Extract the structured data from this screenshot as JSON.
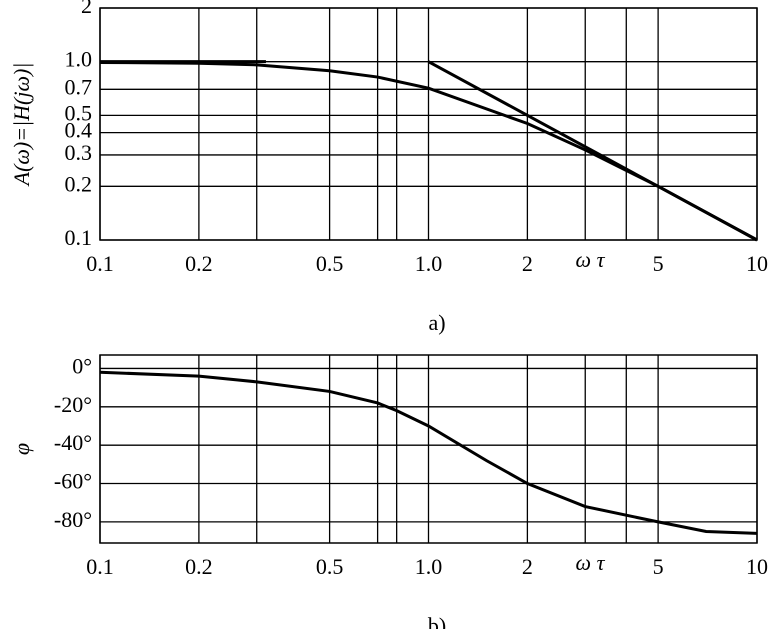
{
  "chart_data": [
    {
      "type": "line",
      "xscale": "log",
      "yscale": "log",
      "caption": "a)",
      "y_label": "A(ω)=|H(jω)|",
      "x_label": "ω τ",
      "xlim": [
        0.1,
        10
      ],
      "ylim": [
        0.1,
        2
      ],
      "xticks": [
        0.1,
        0.2,
        0.5,
        {
          "value": 1,
          "label": "1.0"
        },
        2,
        5,
        10
      ],
      "xgrid": [
        0.1,
        0.2,
        0.3,
        0.5,
        0.7,
        0.8,
        1,
        2,
        3,
        4,
        5,
        10
      ],
      "yticks": [
        2,
        {
          "value": 1,
          "label": "1.0"
        },
        0.7,
        0.5,
        0.4,
        0.3,
        0.2,
        0.1
      ],
      "grid": true,
      "series": [
        {
          "color": "#000000",
          "x": [
            0.1,
            0.2,
            0.3,
            0.5,
            0.7,
            1,
            2,
            3,
            5,
            10
          ],
          "values": [
            0.99,
            0.98,
            0.96,
            0.89,
            0.82,
            0.71,
            0.45,
            0.32,
            0.2,
            0.1
          ]
        },
        {
          "color": "#000000",
          "x": [
            0.1,
            0.32,
            1,
            1,
            10
          ],
          "values": [
            1,
            1,
            null,
            1,
            0.1
          ]
        }
      ]
    },
    {
      "type": "line",
      "xscale": "log",
      "yscale": "linear",
      "caption": "b)",
      "y_label": "φ",
      "x_label": "ω τ",
      "xlim": [
        0.1,
        10
      ],
      "ylim": [
        -91,
        7
      ],
      "xticks": [
        0.1,
        0.2,
        0.5,
        {
          "value": 1,
          "label": "1.0"
        },
        2,
        5,
        10
      ],
      "xgrid": [
        0.1,
        0.2,
        0.3,
        0.5,
        0.7,
        0.8,
        1,
        2,
        3,
        4,
        5,
        10
      ],
      "yticks": [
        {
          "value": 0,
          "label": "0°"
        },
        {
          "value": -20,
          "label": "-20°"
        },
        {
          "value": -40,
          "label": "-40°"
        },
        {
          "value": -60,
          "label": "-60°"
        },
        {
          "value": -80,
          "label": "-80°"
        }
      ],
      "grid": true,
      "series": [
        {
          "color": "#000000",
          "x": [
            0.1,
            0.2,
            0.3,
            0.5,
            0.7,
            0.8,
            1,
            1.5,
            2,
            3,
            5,
            7,
            10
          ],
          "values": [
            -2,
            -4,
            -7,
            -12,
            -18,
            -22,
            -30,
            -48,
            -60,
            -72,
            -80,
            -85,
            -86
          ]
        }
      ]
    }
  ]
}
